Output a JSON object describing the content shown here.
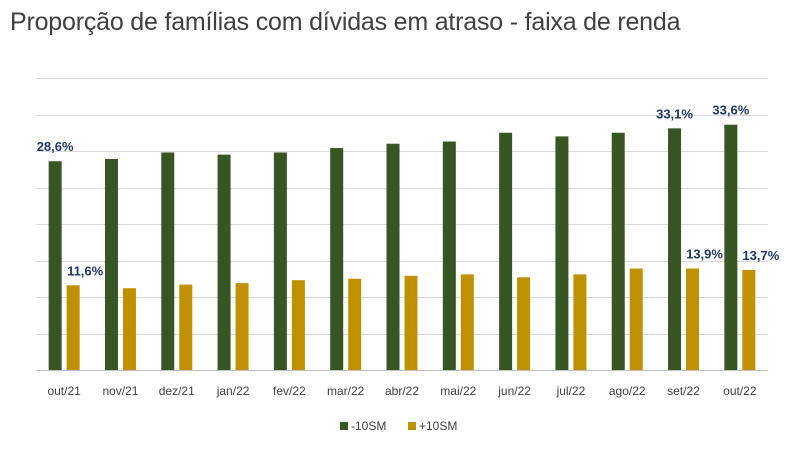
{
  "title": "Proporção de famílias com dívidas em atraso - faixa de renda",
  "chart_data": {
    "type": "bar",
    "title": "Proporção de famílias com dívidas em atraso - faixa de renda",
    "categories": [
      "out/21",
      "nov/21",
      "dez/21",
      "jan/22",
      "fev/22",
      "mar/22",
      "abr/22",
      "mai/22",
      "jun/22",
      "jul/22",
      "ago/22",
      "set/22",
      "out/22"
    ],
    "series": [
      {
        "name": "-10SM",
        "color": "#375623",
        "values": [
          28.6,
          28.9,
          29.8,
          29.5,
          29.8,
          30.4,
          31.0,
          31.3,
          32.5,
          32.0,
          32.5,
          33.1,
          33.6
        ],
        "labels": [
          "28,6%",
          null,
          null,
          null,
          null,
          null,
          null,
          null,
          null,
          null,
          null,
          "33,1%",
          "33,6%"
        ]
      },
      {
        "name": "+10SM",
        "color": "#bf9000",
        "values": [
          11.6,
          11.2,
          11.7,
          11.9,
          12.3,
          12.5,
          12.9,
          13.1,
          12.7,
          13.1,
          13.9,
          13.9,
          13.7
        ],
        "labels": [
          "11,6%",
          null,
          null,
          null,
          null,
          null,
          null,
          null,
          null,
          null,
          null,
          "13,9%",
          "13,7%"
        ]
      }
    ],
    "ylim": [
      0,
      40
    ],
    "grid": true,
    "legend_position": "bottom-center"
  }
}
